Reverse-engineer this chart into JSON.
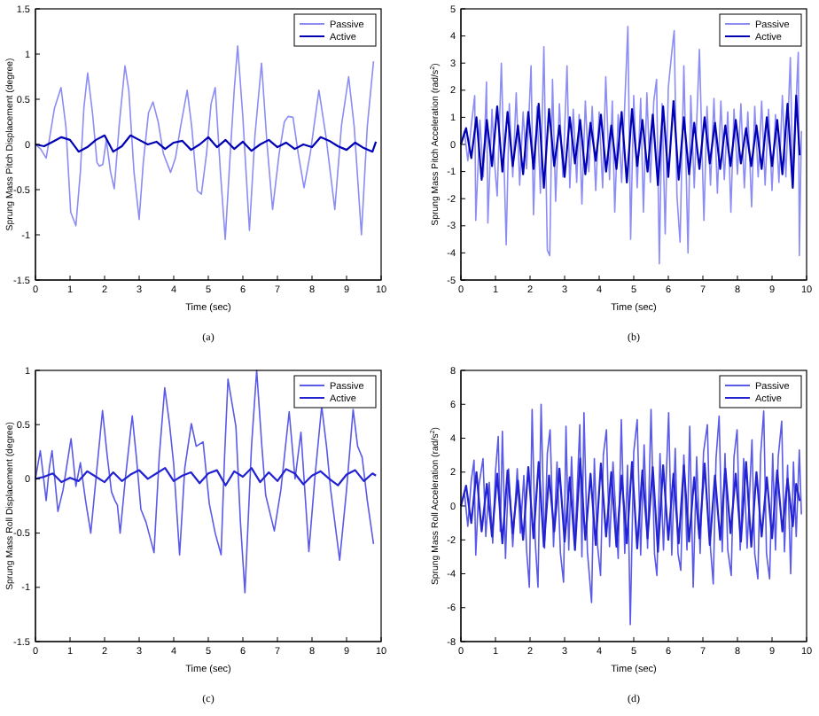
{
  "chart_data": [
    {
      "type": "line",
      "xlabel": "Time (sec)",
      "ylabel": "Sprung Mass Pitch Displacement (degree)",
      "annotations": [
        "(a)"
      ],
      "xlim": [
        0,
        10
      ],
      "xticks": [
        0,
        1,
        2,
        3,
        4,
        5,
        6,
        7,
        8,
        9,
        10
      ],
      "ylim": [
        -1.5,
        1.5
      ],
      "yticks": [
        -1.5,
        -1,
        -0.5,
        0,
        0.5,
        1,
        1.5
      ],
      "legend": "top right",
      "grid": false,
      "series": [
        {
          "name": "Passive",
          "color": "#8c8cf5",
          "x": [
            0,
            0.15,
            0.31,
            0.4,
            0.55,
            0.74,
            0.88,
            1.02,
            1.17,
            1.3,
            1.4,
            1.51,
            1.65,
            1.78,
            1.85,
            1.95,
            2.05,
            2.17,
            2.28,
            2.42,
            2.59,
            2.7,
            2.85,
            3.0,
            3.12,
            3.27,
            3.4,
            3.55,
            3.7,
            3.8,
            3.91,
            4.05,
            4.2,
            4.39,
            4.52,
            4.68,
            4.8,
            4.95,
            5.08,
            5.2,
            5.35,
            5.49,
            5.62,
            5.75,
            5.85,
            6.0,
            6.19,
            6.35,
            6.54,
            6.7,
            6.86,
            7.05,
            7.2,
            7.31,
            7.45,
            7.6,
            7.77,
            7.95,
            8.2,
            8.4,
            8.66,
            8.85,
            9.06,
            9.22,
            9.43,
            9.6,
            9.78
          ],
          "values": [
            0,
            -0.05,
            -0.15,
            0.05,
            0.4,
            0.63,
            0.2,
            -0.75,
            -0.9,
            -0.3,
            0.4,
            0.79,
            0.35,
            -0.2,
            -0.24,
            -0.22,
            0.05,
            -0.3,
            -0.49,
            0.2,
            0.87,
            0.6,
            -0.3,
            -0.83,
            -0.2,
            0.35,
            0.47,
            0.25,
            -0.1,
            -0.2,
            -0.31,
            -0.15,
            0.2,
            0.6,
            0.2,
            -0.51,
            -0.55,
            -0.1,
            0.45,
            0.63,
            -0.3,
            -1.05,
            -0.2,
            0.6,
            1.09,
            0.3,
            -0.95,
            0.1,
            0.9,
            0.0,
            -0.72,
            -0.1,
            0.25,
            0.31,
            0.3,
            -0.1,
            -0.48,
            -0.1,
            0.6,
            0.1,
            -0.72,
            0.2,
            0.75,
            0.2,
            -1.0,
            0.2,
            0.92
          ]
        },
        {
          "name": "Active",
          "color": "#0000b4",
          "x": [
            0,
            0.25,
            0.5,
            0.75,
            1,
            1.25,
            1.5,
            1.75,
            2,
            2.25,
            2.5,
            2.75,
            3,
            3.25,
            3.5,
            3.75,
            4,
            4.25,
            4.5,
            4.75,
            5,
            5.25,
            5.5,
            5.75,
            6,
            6.25,
            6.5,
            6.75,
            7,
            7.25,
            7.5,
            7.75,
            8,
            8.25,
            8.5,
            8.75,
            9,
            9.25,
            9.5,
            9.75,
            9.85
          ],
          "values": [
            0,
            -0.02,
            0.03,
            0.08,
            0.05,
            -0.08,
            -0.03,
            0.05,
            0.1,
            -0.08,
            -0.02,
            0.1,
            0.05,
            0.0,
            0.03,
            -0.05,
            0.02,
            0.04,
            -0.06,
            0.0,
            0.08,
            -0.03,
            0.05,
            -0.05,
            0.03,
            -0.07,
            0.0,
            0.05,
            -0.03,
            0.02,
            -0.05,
            0.0,
            -0.03,
            0.08,
            0.04,
            -0.02,
            -0.06,
            0.02,
            -0.04,
            -0.08,
            0.03
          ]
        }
      ]
    },
    {
      "type": "line",
      "xlabel": "Time (sec)",
      "ylabel": "Sprung Mass Pitch Acceleration (rad/s$^{2}$)",
      "annotations": [
        "(b)"
      ],
      "xlim": [
        0,
        10
      ],
      "xticks": [
        0,
        1,
        2,
        3,
        4,
        5,
        6,
        7,
        8,
        9,
        10
      ],
      "ylim": [
        -5,
        5
      ],
      "yticks": [
        -5,
        -4,
        -3,
        -2,
        -1,
        0,
        1,
        2,
        3,
        4,
        5
      ],
      "legend": "top right",
      "grid": false,
      "series": [
        {
          "name": "Passive",
          "color": "#8c8cf5",
          "x": [
            0,
            0.1,
            0.2,
            0.3,
            0.4,
            0.43,
            0.55,
            0.65,
            0.74,
            0.78,
            0.9,
            0.98,
            1.05,
            1.17,
            1.31,
            1.4,
            1.5,
            1.6,
            1.7,
            1.8,
            1.9,
            2.03,
            2.1,
            2.2,
            2.3,
            2.4,
            2.5,
            2.57,
            2.65,
            2.74,
            2.85,
            2.95,
            3.07,
            3.15,
            3.25,
            3.35,
            3.42,
            3.5,
            3.6,
            3.7,
            3.8,
            3.9,
            4.0,
            4.1,
            4.19,
            4.3,
            4.38,
            4.45,
            4.55,
            4.65,
            4.75,
            4.83,
            4.91,
            5.0,
            5.1,
            5.2,
            5.28,
            5.38,
            5.48,
            5.58,
            5.66,
            5.74,
            5.82,
            5.91,
            6.0,
            6.1,
            6.17,
            6.25,
            6.34,
            6.45,
            6.57,
            6.65,
            6.75,
            6.9,
            7.03,
            7.12,
            7.22,
            7.32,
            7.42,
            7.52,
            7.62,
            7.72,
            7.81,
            7.9,
            8.0,
            8.1,
            8.2,
            8.3,
            8.41,
            8.5,
            8.6,
            8.7,
            8.8,
            8.9,
            9.0,
            9.1,
            9.2,
            9.3,
            9.4,
            9.53,
            9.6,
            9.7,
            9.76,
            9.79,
            9.85
          ],
          "values": [
            0,
            0.5,
            -0.6,
            0.7,
            1.8,
            -2.8,
            0.9,
            -1.2,
            2.3,
            -2.9,
            1.3,
            -0.8,
            -1.9,
            3.0,
            -3.7,
            1.5,
            -1.2,
            1.9,
            -1.5,
            1.2,
            -0.9,
            2.9,
            -2.6,
            1.4,
            -1.8,
            3.6,
            -3.9,
            -4.1,
            2.4,
            -2.1,
            1.5,
            -1.2,
            2.9,
            -1.6,
            1.3,
            -1.4,
            1.1,
            -2.2,
            1.6,
            -1.0,
            1.4,
            -1.7,
            1.2,
            -1.6,
            2.5,
            -1.3,
            1.6,
            -2.5,
            1.1,
            -1.4,
            1.8,
            4.35,
            -3.5,
            1.8,
            -1.6,
            1.7,
            -2.5,
            1.9,
            -1.4,
            1.6,
            2.4,
            -4.4,
            1.5,
            -3.3,
            2.1,
            3.4,
            4.2,
            -1.9,
            -3.6,
            2.9,
            -4.0,
            1.8,
            -1.6,
            3.5,
            -2.8,
            1.4,
            -1.5,
            1.7,
            -1.8,
            1.6,
            -1.3,
            1.2,
            -2.5,
            1.3,
            -1.1,
            1.5,
            -1.6,
            1.2,
            -2.3,
            1.4,
            -1.2,
            1.6,
            -1.5,
            1.3,
            -1.7,
            1.1,
            -1.4,
            1.8,
            -1.2,
            3.2,
            -1.5,
            1.7,
            3.4,
            -4.1,
            0.5
          ]
        },
        {
          "name": "Active",
          "color": "#0000b4",
          "x": [
            0,
            0.15,
            0.3,
            0.45,
            0.6,
            0.75,
            0.9,
            1.05,
            1.2,
            1.35,
            1.5,
            1.65,
            1.8,
            1.95,
            2.1,
            2.25,
            2.4,
            2.55,
            2.7,
            2.85,
            3.0,
            3.15,
            3.3,
            3.45,
            3.6,
            3.75,
            3.9,
            4.05,
            4.2,
            4.35,
            4.5,
            4.65,
            4.8,
            4.95,
            5.1,
            5.25,
            5.4,
            5.55,
            5.7,
            5.85,
            6.0,
            6.15,
            6.3,
            6.45,
            6.6,
            6.75,
            6.9,
            7.05,
            7.2,
            7.35,
            7.5,
            7.65,
            7.8,
            7.95,
            8.1,
            8.25,
            8.4,
            8.55,
            8.7,
            8.85,
            9.0,
            9.15,
            9.3,
            9.45,
            9.6,
            9.7,
            9.8
          ],
          "values": [
            0,
            0.6,
            -0.5,
            1.0,
            -1.3,
            0.9,
            -0.8,
            1.4,
            -1.0,
            1.2,
            -0.8,
            0.7,
            -1.1,
            1.2,
            -0.9,
            1.5,
            -1.6,
            1.3,
            -0.8,
            0.7,
            -1.2,
            1.0,
            -0.7,
            0.9,
            -1.1,
            0.8,
            -0.6,
            1.1,
            -1.0,
            0.7,
            -0.9,
            1.2,
            -1.4,
            1.3,
            -0.8,
            0.9,
            -1.0,
            1.1,
            -1.5,
            1.4,
            -1.2,
            1.6,
            -1.3,
            1.0,
            -1.1,
            0.8,
            -0.9,
            1.0,
            -0.7,
            0.8,
            -0.9,
            0.7,
            -0.8,
            0.9,
            -0.7,
            0.6,
            -0.8,
            0.7,
            -0.9,
            1.0,
            -0.8,
            0.9,
            -1.1,
            1.5,
            -1.6,
            1.8,
            -0.4
          ]
        }
      ]
    },
    {
      "type": "line",
      "xlabel": "Time (sec)",
      "ylabel": "Sprung Mass Roll Displacement (degree)",
      "annotations": [
        "(c)"
      ],
      "xlim": [
        0,
        10
      ],
      "xticks": [
        0,
        1,
        2,
        3,
        4,
        5,
        6,
        7,
        8,
        9,
        10
      ],
      "ylim": [
        -1.5,
        1
      ],
      "yticks": [
        -1.5,
        -1,
        -0.5,
        0,
        0.5,
        1
      ],
      "legend": "top right",
      "grid": false,
      "series": [
        {
          "name": "Passive",
          "color": "#5a5ae8",
          "x": [
            0,
            0.14,
            0.22,
            0.31,
            0.4,
            0.48,
            0.56,
            0.65,
            0.8,
            0.92,
            1.03,
            1.17,
            1.3,
            1.45,
            1.6,
            1.75,
            1.94,
            2.08,
            2.2,
            2.3,
            2.37,
            2.45,
            2.6,
            2.8,
            2.92,
            3.05,
            3.2,
            3.43,
            3.58,
            3.74,
            3.88,
            4.0,
            4.17,
            4.32,
            4.51,
            4.65,
            4.85,
            5.03,
            5.2,
            5.37,
            5.47,
            5.57,
            5.8,
            5.93,
            6.06,
            6.25,
            6.4,
            6.55,
            6.66,
            6.91,
            7.1,
            7.34,
            7.51,
            7.68,
            7.91,
            8.08,
            8.28,
            8.42,
            8.54,
            8.8,
            9.0,
            9.19,
            9.32,
            9.45,
            9.6,
            9.78
          ],
          "values": [
            0,
            0.26,
            0.05,
            -0.2,
            0.1,
            0.26,
            0.0,
            -0.3,
            -0.1,
            0.15,
            0.37,
            -0.07,
            0.15,
            -0.2,
            -0.5,
            0.0,
            0.63,
            0.2,
            -0.12,
            -0.2,
            -0.24,
            -0.5,
            0.0,
            0.58,
            0.2,
            -0.28,
            -0.4,
            -0.68,
            0.2,
            0.84,
            0.5,
            0.13,
            -0.7,
            0.1,
            0.51,
            0.3,
            0.34,
            -0.23,
            -0.5,
            -0.7,
            0.2,
            0.92,
            0.48,
            -0.4,
            -1.05,
            0.3,
            1.0,
            0.3,
            -0.15,
            -0.48,
            -0.1,
            0.62,
            0.0,
            0.43,
            -0.67,
            0.0,
            0.67,
            0.3,
            -0.1,
            -0.75,
            -0.1,
            0.64,
            0.3,
            0.2,
            -0.2,
            -0.6
          ]
        },
        {
          "name": "Active",
          "color": "#2323d2",
          "x": [
            0,
            0.25,
            0.5,
            0.75,
            1,
            1.25,
            1.5,
            1.75,
            2,
            2.25,
            2.5,
            2.75,
            3,
            3.25,
            3.5,
            3.75,
            4,
            4.25,
            4.5,
            4.75,
            5,
            5.25,
            5.5,
            5.75,
            6,
            6.25,
            6.5,
            6.75,
            7,
            7.25,
            7.5,
            7.75,
            8,
            8.25,
            8.5,
            8.75,
            9,
            9.25,
            9.5,
            9.75,
            9.85
          ],
          "values": [
            0,
            0.02,
            0.05,
            -0.03,
            0.01,
            -0.02,
            0.07,
            0.02,
            -0.03,
            0.06,
            -0.02,
            0.04,
            0.08,
            0.0,
            0.05,
            0.1,
            -0.02,
            0.03,
            0.06,
            -0.04,
            0.05,
            0.08,
            -0.06,
            0.07,
            0.02,
            0.1,
            -0.03,
            0.06,
            -0.02,
            0.09,
            0.05,
            -0.05,
            0.03,
            0.07,
            0.0,
            -0.06,
            0.04,
            0.08,
            -0.02,
            0.05,
            0.03
          ]
        }
      ]
    },
    {
      "type": "line",
      "xlabel": "Time (sec)",
      "ylabel": "Sprung Mass Roll Acceleration (rad/s$^{2}$)",
      "annotations": [
        "(d)"
      ],
      "xlim": [
        0,
        10
      ],
      "xticks": [
        0,
        1,
        2,
        3,
        4,
        5,
        6,
        7,
        8,
        9,
        10
      ],
      "ylim": [
        -8,
        8
      ],
      "yticks": [
        -8,
        -6,
        -4,
        -2,
        0,
        2,
        4,
        6,
        8
      ],
      "legend": "top right",
      "grid": false,
      "series": [
        {
          "name": "Passive",
          "color": "#5a5ae8",
          "x": [
            0,
            0.1,
            0.2,
            0.3,
            0.38,
            0.43,
            0.52,
            0.64,
            0.72,
            0.82,
            0.92,
            1.0,
            1.08,
            1.14,
            1.2,
            1.29,
            1.38,
            1.5,
            1.63,
            1.72,
            1.82,
            1.9,
            1.98,
            2.06,
            2.15,
            2.23,
            2.32,
            2.42,
            2.5,
            2.58,
            2.68,
            2.78,
            2.88,
            2.97,
            3.04,
            3.12,
            3.2,
            3.3,
            3.44,
            3.5,
            3.56,
            3.66,
            3.78,
            3.86,
            3.95,
            4.04,
            4.12,
            4.21,
            4.3,
            4.4,
            4.55,
            4.64,
            4.74,
            4.82,
            4.9,
            5.0,
            5.1,
            5.2,
            5.3,
            5.4,
            5.5,
            5.6,
            5.67,
            5.76,
            5.86,
            6.01,
            6.1,
            6.2,
            6.28,
            6.36,
            6.45,
            6.54,
            6.62,
            6.72,
            6.82,
            6.92,
            7.02,
            7.13,
            7.22,
            7.3,
            7.38,
            7.47,
            7.56,
            7.64,
            7.72,
            7.82,
            7.9,
            7.99,
            8.08,
            8.18,
            8.28,
            8.42,
            8.5,
            8.59,
            8.67,
            8.76,
            8.84,
            8.93,
            9.02,
            9.1,
            9.18,
            9.28,
            9.36,
            9.45,
            9.54,
            9.62,
            9.7,
            9.79,
            9.85
          ],
          "values": [
            0,
            0.8,
            -1.2,
            1.5,
            2.7,
            -2.9,
            1.2,
            2.8,
            -1.8,
            1.4,
            -2.2,
            2.0,
            4.1,
            -1.5,
            4.4,
            -3.1,
            2.2,
            -2.4,
            2.2,
            -1.6,
            1.8,
            -2.6,
            -4.8,
            5.7,
            -2.1,
            -4.8,
            6.0,
            -2.5,
            3.1,
            4.5,
            -2.4,
            2.6,
            -2.8,
            -4.5,
            4.7,
            -2.6,
            2.9,
            -2.2,
            4.8,
            -3.0,
            5.5,
            -2.7,
            -5.7,
            2.8,
            -2.3,
            -4.1,
            3.0,
            4.5,
            -2.4,
            2.6,
            -3.1,
            5.1,
            -2.8,
            2.4,
            -7.0,
            3.2,
            5.1,
            -2.9,
            3.6,
            -2.5,
            5.7,
            -2.8,
            -4.1,
            3.1,
            -2.6,
            5.5,
            -2.9,
            3.4,
            -2.8,
            -3.8,
            3.0,
            -2.6,
            4.7,
            -4.8,
            2.9,
            -2.8,
            3.2,
            4.8,
            -2.5,
            -4.6,
            2.8,
            5.3,
            -2.7,
            3.1,
            -2.6,
            -4.1,
            2.9,
            4.5,
            -2.6,
            2.8,
            -2.5,
            3.9,
            -2.8,
            -4.3,
            3.0,
            5.6,
            -2.8,
            -4.3,
            3.1,
            -2.6,
            2.9,
            5.0,
            -2.7,
            2.4,
            -4.0,
            2.6,
            -1.8,
            3.3,
            -0.5
          ]
        },
        {
          "name": "Active",
          "color": "#2323d2",
          "x": [
            0,
            0.15,
            0.3,
            0.45,
            0.6,
            0.75,
            0.9,
            1.05,
            1.2,
            1.35,
            1.5,
            1.65,
            1.8,
            1.95,
            2.1,
            2.25,
            2.4,
            2.55,
            2.7,
            2.85,
            3.0,
            3.15,
            3.3,
            3.45,
            3.6,
            3.75,
            3.9,
            4.05,
            4.2,
            4.35,
            4.5,
            4.65,
            4.8,
            4.95,
            5.1,
            5.25,
            5.4,
            5.55,
            5.7,
            5.85,
            6.0,
            6.15,
            6.3,
            6.45,
            6.6,
            6.75,
            6.9,
            7.05,
            7.2,
            7.35,
            7.5,
            7.65,
            7.8,
            7.95,
            8.1,
            8.25,
            8.4,
            8.55,
            8.7,
            8.85,
            9.0,
            9.15,
            9.3,
            9.45,
            9.6,
            9.7,
            9.8
          ],
          "values": [
            0,
            1.2,
            -1.0,
            2.0,
            -1.5,
            1.3,
            -1.8,
            1.9,
            -2.2,
            2.1,
            -1.6,
            1.5,
            -2.0,
            2.3,
            -1.9,
            2.6,
            -2.4,
            1.8,
            -1.5,
            2.2,
            -2.1,
            1.7,
            -2.6,
            2.8,
            -2.0,
            1.9,
            -2.3,
            2.5,
            -1.8,
            2.0,
            -2.4,
            1.8,
            -2.2,
            2.6,
            -2.5,
            2.1,
            -1.9,
            2.3,
            -2.7,
            2.4,
            -2.0,
            1.9,
            -2.2,
            2.4,
            -2.1,
            1.7,
            -1.9,
            2.5,
            -2.3,
            1.8,
            -2.0,
            2.2,
            -1.6,
            1.9,
            -2.1,
            2.6,
            -2.4,
            2.0,
            -1.8,
            1.7,
            -1.9,
            2.1,
            -1.5,
            1.6,
            -1.2,
            1.3,
            0.3
          ]
        }
      ]
    }
  ]
}
